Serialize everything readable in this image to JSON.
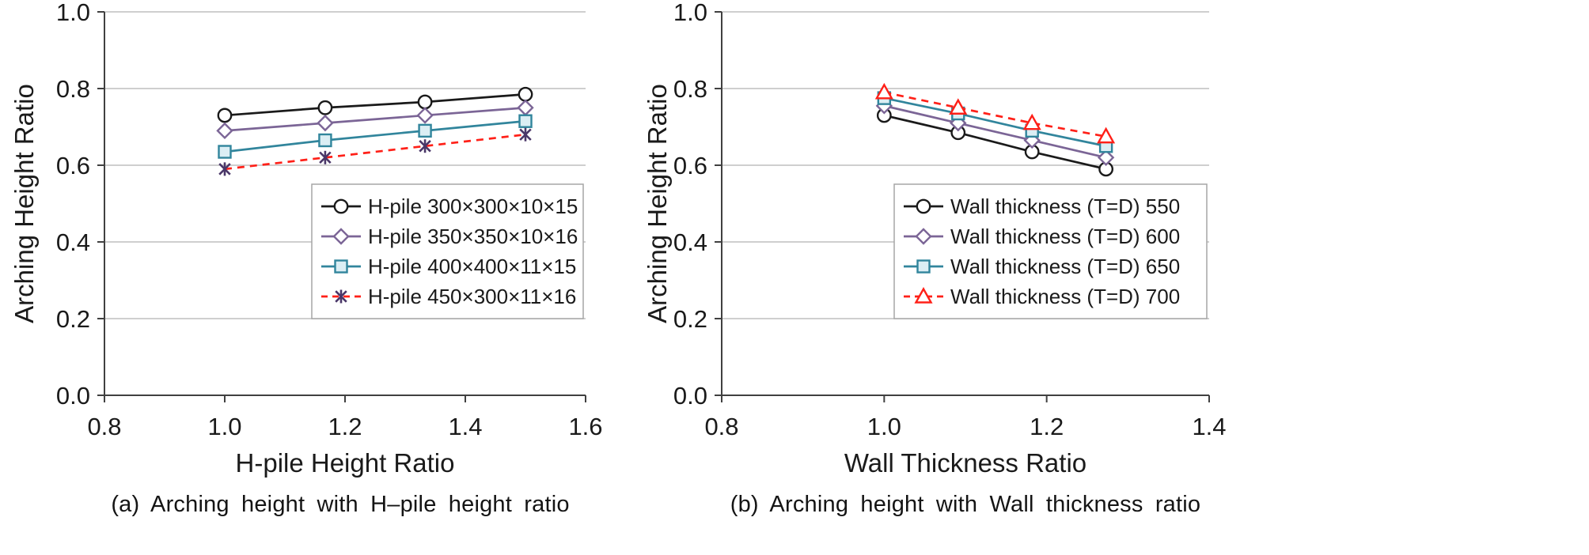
{
  "page": {
    "background": "#ffffff"
  },
  "colors": {
    "axis": "#404040",
    "grid": "#bfbfbf",
    "text": "#1a1a1a",
    "legend_border": "#a6a6a6",
    "legend_fill": "#ffffff"
  },
  "chart_data": [
    {
      "type": "line",
      "panel": "a",
      "caption": "(a) Arching height with H–pile height ratio",
      "xlabel": "H-pile Height Ratio",
      "ylabel": "Arching Height Ratio",
      "xlim": [
        0.8,
        1.6
      ],
      "ylim": [
        0.0,
        1.0
      ],
      "xticks": [
        0.8,
        1.0,
        1.2,
        1.4,
        1.6
      ],
      "yticks": [
        0.0,
        0.2,
        0.4,
        0.6,
        0.8,
        1.0
      ],
      "grid": "horizontal",
      "legend_position": "lower-right",
      "x": [
        1.0,
        1.167,
        1.333,
        1.5
      ],
      "series": [
        {
          "name": "H-pile 300×300×10×15",
          "values": [
            0.73,
            0.75,
            0.765,
            0.785
          ],
          "color": "#1a1a1a",
          "marker": "circle",
          "marker_fill": "#ffffff",
          "line": "solid"
        },
        {
          "name": "H-pile 350×350×10×16",
          "values": [
            0.69,
            0.71,
            0.73,
            0.75
          ],
          "color": "#7b6596",
          "marker": "diamond",
          "marker_fill": "#ffffff",
          "line": "solid"
        },
        {
          "name": "H-pile 400×400×11×15",
          "values": [
            0.635,
            0.665,
            0.69,
            0.715
          ],
          "color": "#31859c",
          "marker": "square",
          "marker_fill": "#dbeef4",
          "line": "solid"
        },
        {
          "name": "H-pile 450×300×11×16",
          "values": [
            0.59,
            0.62,
            0.65,
            0.68
          ],
          "color": "#ff2018",
          "marker": "xstar",
          "marker_color": "#4a3768",
          "marker_fill": "none",
          "line": "dashed"
        }
      ]
    },
    {
      "type": "line",
      "panel": "b",
      "caption": "(b) Arching height with Wall thickness ratio",
      "xlabel": "Wall Thickness Ratio",
      "ylabel": "Arching Height Ratio",
      "xlim": [
        0.8,
        1.4
      ],
      "ylim": [
        0.0,
        1.0
      ],
      "xticks": [
        0.8,
        1.0,
        1.2,
        1.4
      ],
      "yticks": [
        0.0,
        0.2,
        0.4,
        0.6,
        0.8,
        1.0
      ],
      "grid": "horizontal",
      "legend_position": "lower-right",
      "x": [
        1.0,
        1.091,
        1.182,
        1.273
      ],
      "series": [
        {
          "name": "Wall thickness (T=D) 550",
          "values": [
            0.73,
            0.685,
            0.635,
            0.59
          ],
          "color": "#1a1a1a",
          "marker": "circle",
          "marker_fill": "#ffffff",
          "line": "solid"
        },
        {
          "name": "Wall thickness (T=D) 600",
          "values": [
            0.755,
            0.71,
            0.665,
            0.62
          ],
          "color": "#7b6596",
          "marker": "diamond",
          "marker_fill": "#ffffff",
          "line": "solid"
        },
        {
          "name": "Wall thickness (T=D) 650",
          "values": [
            0.775,
            0.735,
            0.69,
            0.65
          ],
          "color": "#31859c",
          "marker": "square",
          "marker_fill": "#dbeef4",
          "line": "solid"
        },
        {
          "name": "Wall thickness (T=D) 700",
          "values": [
            0.79,
            0.75,
            0.71,
            0.675
          ],
          "color": "#ff2018",
          "marker": "triangle",
          "marker_fill": "#ffffff",
          "line": "dashed"
        }
      ]
    }
  ]
}
